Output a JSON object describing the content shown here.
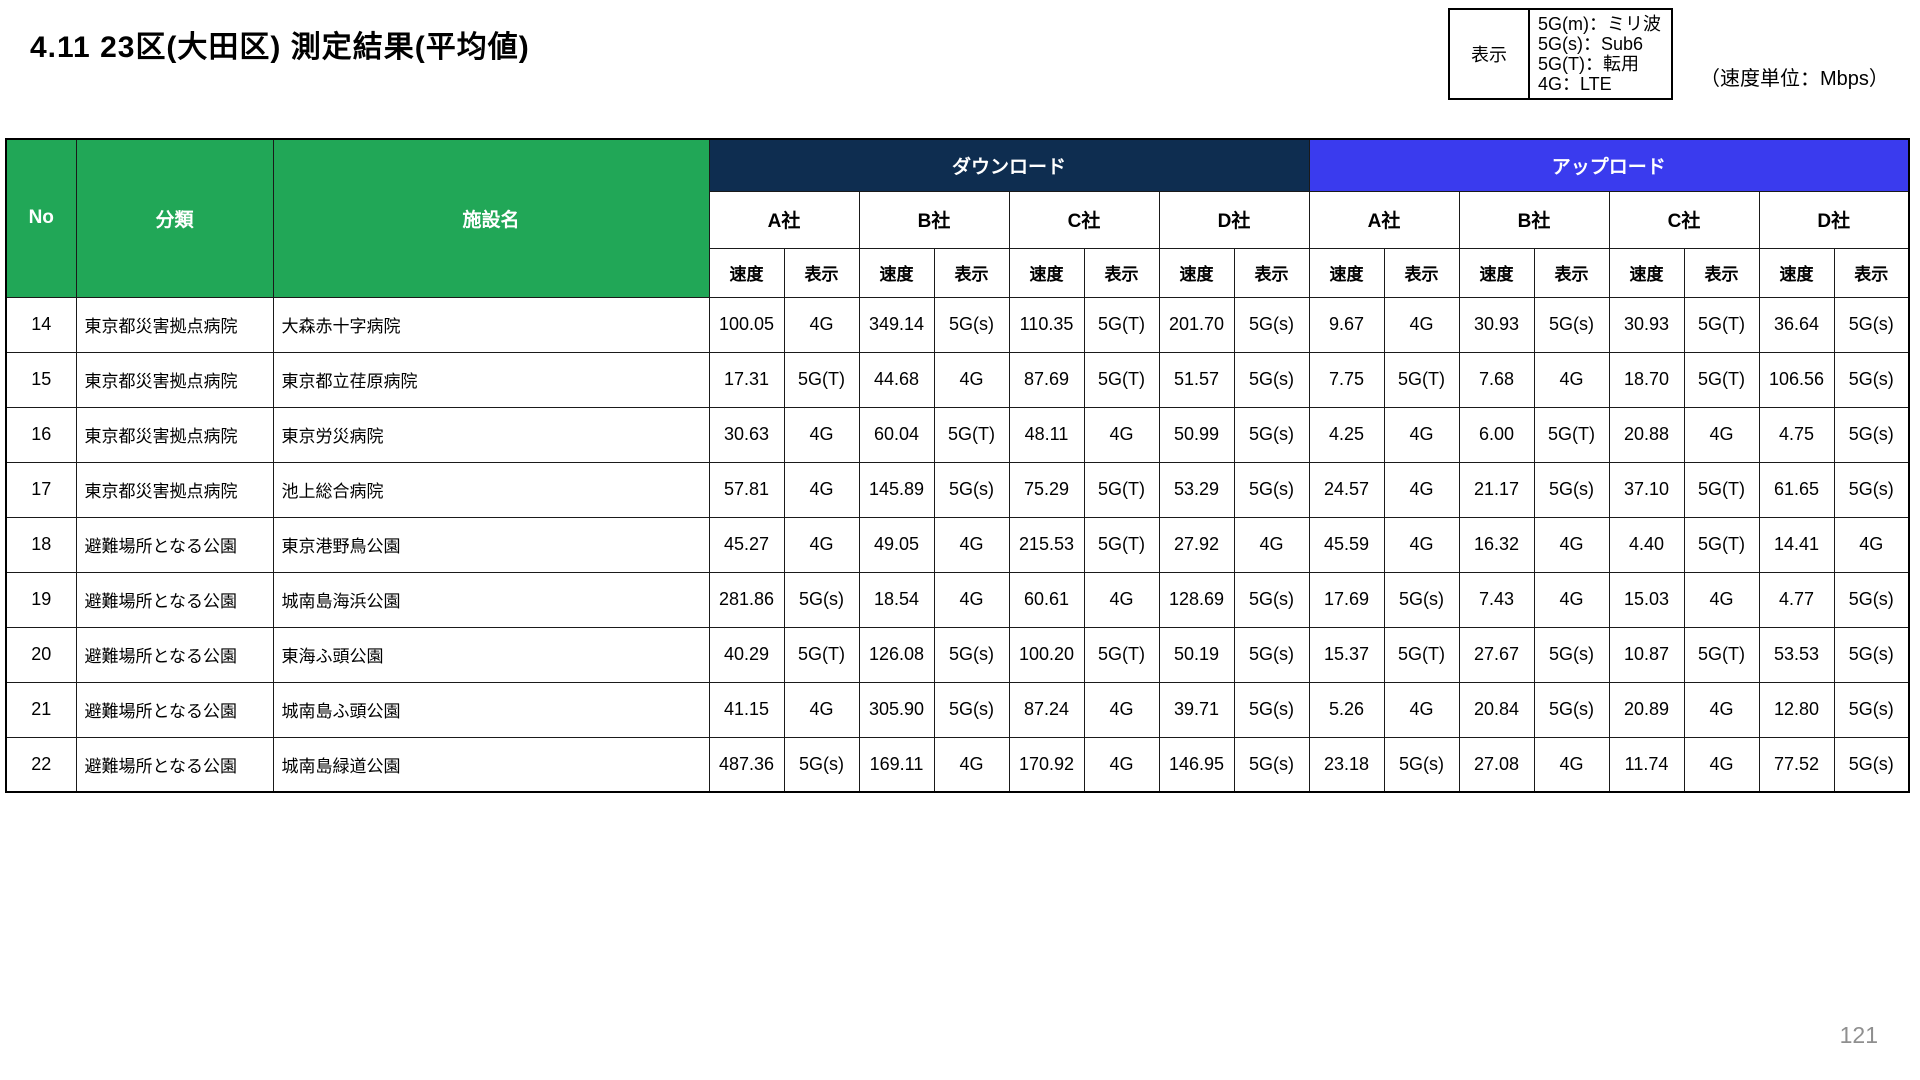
{
  "page": {
    "title": "4.11 23区(大田区) 測定結果(平均値)",
    "unit_note": "（速度単位：Mbps）",
    "page_number": "121"
  },
  "legend": {
    "label": "表示",
    "lines": [
      "5G(m)：ミリ波",
      "5G(s)：Sub6",
      "5G(T)：転用",
      "4G：LTE"
    ]
  },
  "colors": {
    "header_green": "#21A757",
    "download_band": "#0E2D50",
    "upload_band": "#3A3BEE",
    "page_number_gray": "#8F8F8F"
  },
  "table": {
    "headers": {
      "no": "No",
      "category": "分類",
      "facility": "施設名",
      "download": "ダウンロード",
      "upload": "アップロード",
      "carriers": [
        "A社",
        "B社",
        "C社",
        "D社"
      ],
      "speed": "速度",
      "display": "表示"
    },
    "rows": [
      {
        "no": "14",
        "category": "東京都災害拠点病院",
        "facility": "大森赤十字病院",
        "values": [
          "100.05",
          "4G",
          "349.14",
          "5G(s)",
          "110.35",
          "5G(T)",
          "201.70",
          "5G(s)",
          "9.67",
          "4G",
          "30.93",
          "5G(s)",
          "30.93",
          "5G(T)",
          "36.64",
          "5G(s)"
        ]
      },
      {
        "no": "15",
        "category": "東京都災害拠点病院",
        "facility": "東京都立荏原病院",
        "values": [
          "17.31",
          "5G(T)",
          "44.68",
          "4G",
          "87.69",
          "5G(T)",
          "51.57",
          "5G(s)",
          "7.75",
          "5G(T)",
          "7.68",
          "4G",
          "18.70",
          "5G(T)",
          "106.56",
          "5G(s)"
        ]
      },
      {
        "no": "16",
        "category": "東京都災害拠点病院",
        "facility": "東京労災病院",
        "values": [
          "30.63",
          "4G",
          "60.04",
          "5G(T)",
          "48.11",
          "4G",
          "50.99",
          "5G(s)",
          "4.25",
          "4G",
          "6.00",
          "5G(T)",
          "20.88",
          "4G",
          "4.75",
          "5G(s)"
        ]
      },
      {
        "no": "17",
        "category": "東京都災害拠点病院",
        "facility": "池上総合病院",
        "values": [
          "57.81",
          "4G",
          "145.89",
          "5G(s)",
          "75.29",
          "5G(T)",
          "53.29",
          "5G(s)",
          "24.57",
          "4G",
          "21.17",
          "5G(s)",
          "37.10",
          "5G(T)",
          "61.65",
          "5G(s)"
        ]
      },
      {
        "no": "18",
        "category": "避難場所となる公園",
        "facility": "東京港野鳥公園",
        "values": [
          "45.27",
          "4G",
          "49.05",
          "4G",
          "215.53",
          "5G(T)",
          "27.92",
          "4G",
          "45.59",
          "4G",
          "16.32",
          "4G",
          "4.40",
          "5G(T)",
          "14.41",
          "4G"
        ]
      },
      {
        "no": "19",
        "category": "避難場所となる公園",
        "facility": "城南島海浜公園",
        "values": [
          "281.86",
          "5G(s)",
          "18.54",
          "4G",
          "60.61",
          "4G",
          "128.69",
          "5G(s)",
          "17.69",
          "5G(s)",
          "7.43",
          "4G",
          "15.03",
          "4G",
          "4.77",
          "5G(s)"
        ]
      },
      {
        "no": "20",
        "category": "避難場所となる公園",
        "facility": "東海ふ頭公園",
        "values": [
          "40.29",
          "5G(T)",
          "126.08",
          "5G(s)",
          "100.20",
          "5G(T)",
          "50.19",
          "5G(s)",
          "15.37",
          "5G(T)",
          "27.67",
          "5G(s)",
          "10.87",
          "5G(T)",
          "53.53",
          "5G(s)"
        ]
      },
      {
        "no": "21",
        "category": "避難場所となる公園",
        "facility": "城南島ふ頭公園",
        "values": [
          "41.15",
          "4G",
          "305.90",
          "5G(s)",
          "87.24",
          "4G",
          "39.71",
          "5G(s)",
          "5.26",
          "4G",
          "20.84",
          "5G(s)",
          "20.89",
          "4G",
          "12.80",
          "5G(s)"
        ]
      },
      {
        "no": "22",
        "category": "避難場所となる公園",
        "facility": "城南島緑道公園",
        "values": [
          "487.36",
          "5G(s)",
          "169.11",
          "4G",
          "170.92",
          "4G",
          "146.95",
          "5G(s)",
          "23.18",
          "5G(s)",
          "27.08",
          "4G",
          "11.74",
          "4G",
          "77.52",
          "5G(s)"
        ]
      }
    ]
  }
}
